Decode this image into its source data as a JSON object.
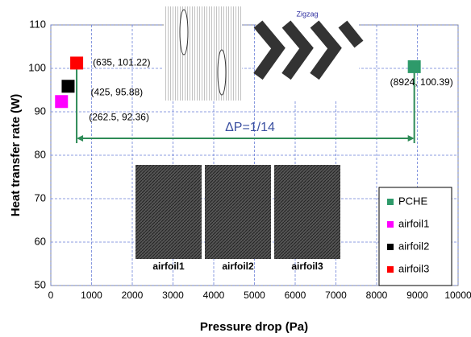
{
  "chart_data": {
    "type": "scatter",
    "xlabel": "Pressure drop (Pa)",
    "ylabel": "Heat transfer rate (W)",
    "xlim": [
      0,
      10000
    ],
    "xticks": [
      0,
      1000,
      2000,
      3000,
      4000,
      5000,
      6000,
      7000,
      8000,
      9000,
      10000
    ],
    "ylim": [
      50,
      110
    ],
    "yticks": [
      50,
      60,
      70,
      80,
      90,
      100,
      110
    ],
    "grid": true,
    "legend": "lower right",
    "series": [
      {
        "name": "PCHE",
        "color": "#2e9a6a",
        "x": [
          8924
        ],
        "values": [
          100.39
        ],
        "value_labels": [
          "(8924, 100.39)"
        ]
      },
      {
        "name": "airfoil1",
        "color": "#ff00ff",
        "x": [
          262.5
        ],
        "values": [
          92.36
        ],
        "value_labels": [
          "(262.5, 92.36)"
        ]
      },
      {
        "name": "airfoil2",
        "color": "#000000",
        "x": [
          425
        ],
        "values": [
          95.88
        ],
        "value_labels": [
          "(425, 95.88)"
        ]
      },
      {
        "name": "airfoil3",
        "color": "#ff0000",
        "x": [
          635
        ],
        "values": [
          101.22
        ],
        "value_labels": [
          "(635, 101.22)"
        ]
      }
    ],
    "annotations": [
      "ΔP=1/14",
      "Zigzag",
      "airfoil1",
      "airfoil2",
      "airfoil3"
    ]
  }
}
